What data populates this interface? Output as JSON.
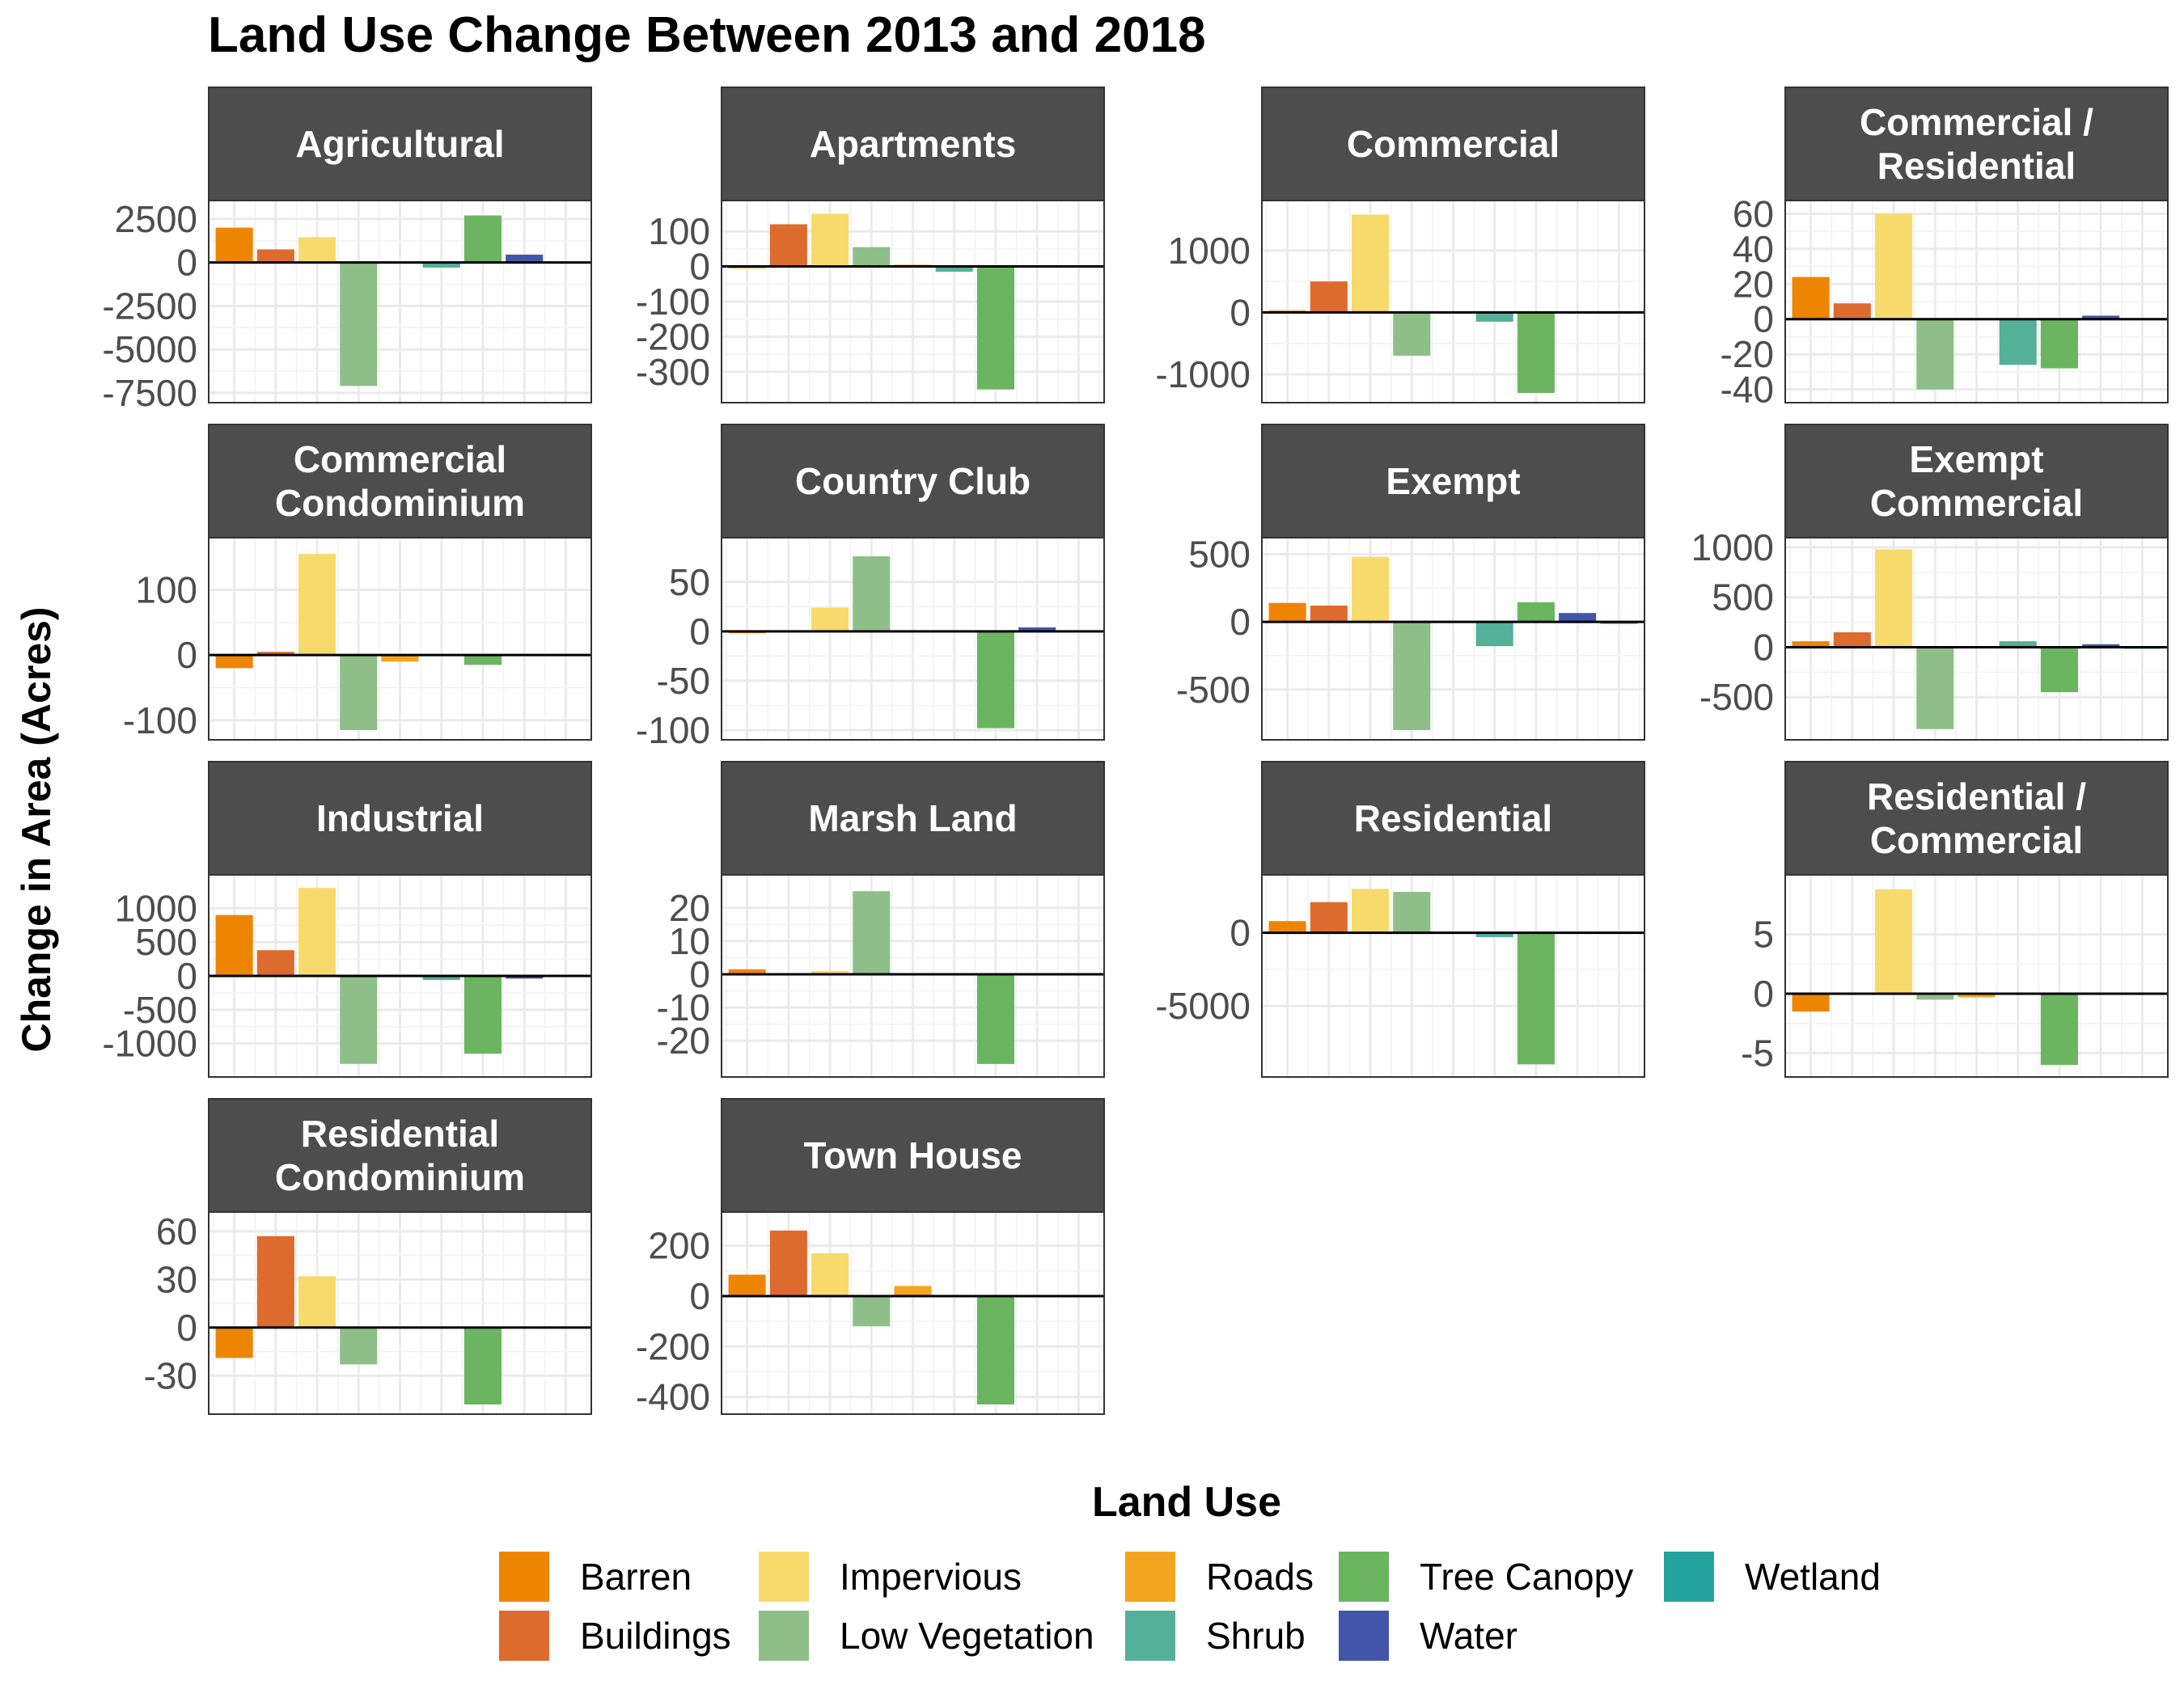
{
  "chart_data": {
    "type": "bar",
    "title": "Land Use Change Between 2013 and 2018",
    "ylabel": "Change in Area (Acres)",
    "xlabel": "",
    "grid": true,
    "legend": {
      "title": "Land Use",
      "position": "bottom",
      "columns": [
        [
          "Barren",
          "Buildings"
        ],
        [
          "Impervious",
          "Low Vegetation"
        ],
        [
          "Roads",
          "Shrub"
        ],
        [
          "Tree Canopy",
          "Water"
        ],
        [
          "Wetland"
        ]
      ]
    },
    "categories": [
      "Barren",
      "Buildings",
      "Impervious",
      "Low Vegetation",
      "Roads",
      "Shrub",
      "Tree Canopy",
      "Water",
      "Wetland"
    ],
    "colors": {
      "Barren": "#EE8500",
      "Buildings": "#DE6B2E",
      "Impervious": "#F7DA6B",
      "Low Vegetation": "#8FBF88",
      "Roads": "#F4A51F",
      "Shrub": "#54B098",
      "Tree Canopy": "#6BB560",
      "Water": "#4156A8",
      "Wetland": "#24A39E"
    },
    "panels": [
      {
        "title_lines": [
          "Agricultural"
        ],
        "ylim": [
          -7500,
          3000
        ],
        "ticks": [
          2500,
          0,
          -2500,
          -5000,
          -7500
        ],
        "tick_labels": [
          "2500",
          "0",
          "-2500",
          "-5000",
          "-7500"
        ],
        "values": [
          2000,
          750,
          1450,
          -7100,
          0,
          -300,
          2700,
          450,
          0
        ]
      },
      {
        "title_lines": [
          "Apartments"
        ],
        "ylim": [
          -360,
          160
        ],
        "ticks": [
          100,
          0,
          -100,
          -200,
          -300
        ],
        "tick_labels": [
          "100",
          "0",
          "-100",
          "-200",
          "-300"
        ],
        "values": [
          -5,
          120,
          150,
          55,
          5,
          -15,
          -350,
          0,
          0
        ]
      },
      {
        "title_lines": [
          "Commercial"
        ],
        "ylim": [
          -1300,
          1650
        ],
        "ticks": [
          1000,
          0,
          -1000
        ],
        "tick_labels": [
          "1000",
          "0",
          "-1000"
        ],
        "values": [
          30,
          500,
          1580,
          -700,
          0,
          -150,
          -1300,
          0,
          0
        ]
      },
      {
        "title_lines": [
          "Commercial /",
          "Residential"
        ],
        "ylim": [
          -42,
          62
        ],
        "ticks": [
          60,
          40,
          20,
          0,
          -20,
          -40
        ],
        "tick_labels": [
          "60",
          "40",
          "20",
          "0",
          "-20",
          "-40"
        ],
        "values": [
          24,
          9,
          60,
          -40,
          0,
          -26,
          -28,
          2,
          0
        ]
      },
      {
        "title_lines": [
          "Commercial",
          "Condominium"
        ],
        "ylim": [
          -115,
          165
        ],
        "ticks": [
          100,
          0,
          -100
        ],
        "tick_labels": [
          "100",
          "0",
          "-100"
        ],
        "values": [
          -20,
          5,
          155,
          -115,
          -10,
          0,
          -15,
          0,
          0
        ]
      },
      {
        "title_lines": [
          "Country Club"
        ],
        "ylim": [
          -100,
          85
        ],
        "ticks": [
          50,
          0,
          -50,
          -100
        ],
        "tick_labels": [
          "50",
          "0",
          "-50",
          "-100"
        ],
        "values": [
          -2,
          0,
          24,
          76,
          0,
          0,
          -98,
          4,
          0
        ]
      },
      {
        "title_lines": [
          "Exempt"
        ],
        "ylim": [
          -800,
          550
        ],
        "ticks": [
          500,
          0,
          -500
        ],
        "tick_labels": [
          "500",
          "0",
          "-500"
        ],
        "values": [
          140,
          120,
          480,
          -800,
          0,
          -180,
          145,
          65,
          -15
        ]
      },
      {
        "title_lines": [
          "Exempt",
          "Commercial"
        ],
        "ylim": [
          -830,
          1000
        ],
        "ticks": [
          1000,
          500,
          0,
          -500
        ],
        "tick_labels": [
          "1000",
          "500",
          "0",
          "-500"
        ],
        "values": [
          60,
          150,
          980,
          -820,
          0,
          60,
          -450,
          30,
          -15
        ]
      },
      {
        "title_lines": [
          "Industrial"
        ],
        "ylim": [
          -1350,
          1350
        ],
        "ticks": [
          1000,
          500,
          0,
          -500,
          -1000
        ],
        "tick_labels": [
          "1000",
          "500",
          "0",
          "-500",
          "-1000"
        ],
        "values": [
          900,
          380,
          1300,
          -1300,
          0,
          -60,
          -1150,
          -40,
          0
        ]
      },
      {
        "title_lines": [
          "Marsh Land"
        ],
        "ylim": [
          -28,
          27
        ],
        "ticks": [
          20,
          10,
          0,
          -10,
          -20
        ],
        "tick_labels": [
          "20",
          "10",
          "0",
          "-10",
          "-20"
        ],
        "values": [
          1.5,
          0,
          1,
          25,
          0,
          0,
          -27,
          0,
          0
        ]
      },
      {
        "title_lines": [
          "Residential"
        ],
        "ylim": [
          -9200,
          3300
        ],
        "ticks": [
          0,
          -5000
        ],
        "tick_labels": [
          "0",
          "-5000"
        ],
        "values": [
          800,
          2100,
          3000,
          2800,
          0,
          -300,
          -9000,
          0,
          0
        ]
      },
      {
        "title_lines": [
          "Residential /",
          "Commercial"
        ],
        "ylim": [
          -6.2,
          9.2
        ],
        "ticks": [
          5,
          0,
          -5
        ],
        "tick_labels": [
          "5",
          "0",
          "-5"
        ],
        "values": [
          -1.5,
          0.1,
          8.8,
          -0.5,
          -0.3,
          0,
          -6,
          0,
          0
        ]
      },
      {
        "title_lines": [
          "Residential",
          "Condominium"
        ],
        "ylim": [
          -48,
          66
        ],
        "ticks": [
          60,
          30,
          0,
          -30
        ],
        "tick_labels": [
          "60",
          "30",
          "0",
          "-30"
        ],
        "values": [
          -19,
          57,
          32,
          -23,
          0,
          0,
          -48,
          0,
          0
        ]
      },
      {
        "title_lines": [
          "Town House"
        ],
        "ylim": [
          -430,
          295
        ],
        "ticks": [
          200,
          0,
          -200,
          -400
        ],
        "tick_labels": [
          "200",
          "0",
          "-200",
          "-400"
        ],
        "values": [
          85,
          260,
          170,
          -120,
          40,
          0,
          -430,
          0,
          0
        ]
      }
    ]
  }
}
